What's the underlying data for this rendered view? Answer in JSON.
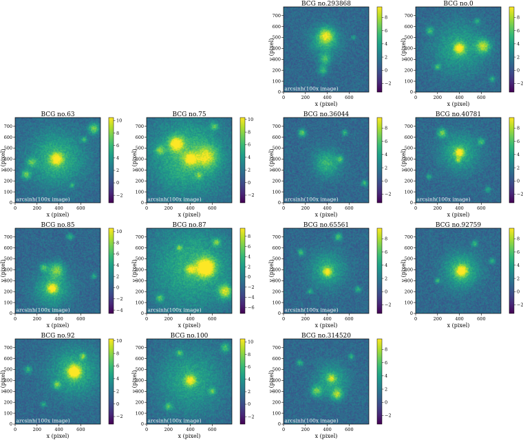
{
  "chart_data": {
    "type": "heatmap",
    "colormap": "viridis",
    "panels": [
      {
        "title": "BCG no.293868",
        "xlabel": "x (pixel)",
        "ylabel": "y (pixel)",
        "annotation": "arcsinh(100x image)",
        "x_ticks": [
          0,
          200,
          400,
          600
        ],
        "y_ticks": [
          0,
          100,
          200,
          300,
          400,
          500,
          600,
          700
        ],
        "xlim": [
          0,
          780
        ],
        "ylim": [
          0,
          780
        ],
        "colorbar_ticks": [
          -2,
          0,
          2,
          4,
          6,
          8
        ],
        "colorbar_range": [
          -3.3,
          9.6
        ],
        "sources": [
          [
            380,
            470,
            90,
            1
          ],
          [
            390,
            520,
            45,
            1.3
          ],
          [
            380,
            300,
            35,
            1
          ],
          [
            360,
            200,
            30,
            1
          ],
          [
            640,
            500,
            15,
            0.8
          ]
        ]
      },
      {
        "title": "BCG no.0",
        "xlabel": "x (pixel)",
        "ylabel": "y (pixel)",
        "annotation": "",
        "x_ticks": [
          0,
          200,
          400,
          600
        ],
        "y_ticks": [
          0,
          100,
          200,
          300,
          400,
          500,
          600,
          700
        ],
        "xlim": [
          0,
          780
        ],
        "ylim": [
          0,
          780
        ],
        "colorbar_ticks": [
          -2,
          0,
          2,
          4,
          6,
          8
        ],
        "colorbar_range": [
          -3.3,
          9.6
        ],
        "sources": [
          [
            400,
            400,
            160,
            0.8
          ],
          [
            400,
            400,
            35,
            1.6
          ],
          [
            620,
            420,
            45,
            1.5
          ],
          [
            130,
            560,
            25,
            1
          ],
          [
            200,
            230,
            20,
            1
          ],
          [
            560,
            650,
            18,
            0.9
          ],
          [
            700,
            120,
            20,
            0.9
          ]
        ]
      },
      {
        "title": "BCG no.63",
        "xlabel": "x (pixel)",
        "ylabel": "y (pixel)",
        "annotation": "arcsinh(100x image)",
        "x_ticks": [
          0,
          200,
          400,
          600
        ],
        "y_ticks": [
          0,
          100,
          200,
          300,
          400,
          500,
          600,
          700
        ],
        "xlim": [
          0,
          780
        ],
        "ylim": [
          0,
          780
        ],
        "colorbar_ticks": [
          -2,
          0,
          2,
          4,
          6,
          8,
          10
        ],
        "colorbar_range": [
          -3.2,
          10.5
        ],
        "sources": [
          [
            380,
            400,
            170,
            1
          ],
          [
            380,
            400,
            40,
            1.5
          ],
          [
            150,
            370,
            30,
            1
          ],
          [
            100,
            260,
            30,
            1.2
          ],
          [
            720,
            680,
            35,
            1.4
          ],
          [
            630,
            580,
            18,
            1
          ],
          [
            520,
            160,
            15,
            0.8
          ]
        ]
      },
      {
        "title": "BCG no.75",
        "xlabel": "x (pixel)",
        "ylabel": "y (pixel)",
        "annotation": "arcsinh(100x image)",
        "x_ticks": [
          0,
          200,
          400,
          600
        ],
        "y_ticks": [
          0,
          100,
          200,
          300,
          400,
          500,
          600,
          700
        ],
        "xlim": [
          0,
          780
        ],
        "ylim": [
          0,
          780
        ],
        "colorbar_ticks": [
          -2,
          0,
          2,
          4,
          6,
          8,
          10
        ],
        "colorbar_range": [
          -3.2,
          10.3
        ],
        "sources": [
          [
            380,
            420,
            230,
            1.1
          ],
          [
            270,
            540,
            45,
            1.8
          ],
          [
            400,
            400,
            40,
            1.4
          ],
          [
            550,
            420,
            70,
            1.2
          ],
          [
            120,
            480,
            30,
            1
          ],
          [
            620,
            700,
            25,
            1
          ],
          [
            480,
            250,
            20,
            0.8
          ]
        ]
      },
      {
        "title": "BCG no.36044",
        "xlabel": "x (pixel)",
        "ylabel": "y (pixel)",
        "annotation": "arcsinh(100x image)",
        "x_ticks": [
          0,
          200,
          400,
          600
        ],
        "y_ticks": [
          0,
          100,
          200,
          300,
          400,
          500,
          600,
          700
        ],
        "xlim": [
          0,
          780
        ],
        "ylim": [
          0,
          780
        ],
        "colorbar_ticks": [
          -2,
          0,
          2,
          4,
          6,
          8
        ],
        "colorbar_range": [
          -3.3,
          9.6
        ],
        "sources": [
          [
            400,
            360,
            85,
            1
          ],
          [
            170,
            640,
            25,
            1.3
          ],
          [
            560,
            640,
            20,
            1
          ],
          [
            520,
            400,
            22,
            1
          ],
          [
            740,
            180,
            20,
            1
          ]
        ]
      },
      {
        "title": "BCG no.40781",
        "xlabel": "x (pixel)",
        "ylabel": "y (pixel)",
        "annotation": "arcsinh(100x image)",
        "x_ticks": [
          0,
          200,
          400,
          600
        ],
        "y_ticks": [
          0,
          100,
          200,
          300,
          400,
          500,
          600,
          700
        ],
        "xlim": [
          0,
          780
        ],
        "ylim": [
          0,
          780
        ],
        "colorbar_ticks": [
          -2,
          0,
          2,
          4,
          6,
          8
        ],
        "colorbar_range": [
          -3.3,
          9.6
        ],
        "sources": [
          [
            400,
            460,
            120,
            0.9
          ],
          [
            400,
            460,
            30,
            1.6
          ],
          [
            240,
            640,
            30,
            1.3
          ],
          [
            600,
            560,
            22,
            1
          ],
          [
            120,
            240,
            18,
            0.9
          ],
          [
            660,
            120,
            18,
            0.9
          ],
          [
            390,
            390,
            16,
            1
          ]
        ]
      },
      {
        "title": "BCG no.85",
        "xlabel": "x (pixel)",
        "ylabel": "y (pixel)",
        "annotation": "arcsinh(100x image)",
        "x_ticks": [
          0,
          200,
          400,
          600
        ],
        "y_ticks": [
          0,
          100,
          200,
          300,
          400,
          500,
          600,
          700
        ],
        "xlim": [
          0,
          780
        ],
        "ylim": [
          0,
          780
        ],
        "colorbar_ticks": [
          -4,
          -2,
          0,
          2,
          4,
          6,
          8,
          10
        ],
        "colorbar_range": [
          -4.6,
          10.6
        ],
        "sources": [
          [
            340,
            230,
            110,
            1
          ],
          [
            340,
            230,
            30,
            1.6
          ],
          [
            380,
            400,
            50,
            1.2
          ],
          [
            260,
            420,
            25,
            1
          ],
          [
            500,
            700,
            20,
            1
          ],
          [
            720,
            340,
            18,
            0.9
          ]
        ]
      },
      {
        "title": "BCG no.87",
        "xlabel": "x (pixel)",
        "ylabel": "y (pixel)",
        "annotation": "arcsinh(100x image)",
        "x_ticks": [
          0,
          200,
          400,
          600
        ],
        "y_ticks": [
          0,
          100,
          200,
          300,
          400,
          500,
          600,
          700
        ],
        "xlim": [
          0,
          780
        ],
        "ylim": [
          0,
          780
        ],
        "colorbar_ticks": [
          -6,
          -4,
          -2,
          0,
          2,
          4,
          6,
          8
        ],
        "colorbar_range": [
          -7.2,
          9.6
        ],
        "sources": [
          [
            420,
            420,
            260,
            0.9
          ],
          [
            540,
            420,
            60,
            2.2
          ],
          [
            720,
            200,
            45,
            1.6
          ],
          [
            400,
            400,
            30,
            1.2
          ],
          [
            120,
            140,
            25,
            1
          ],
          [
            640,
            650,
            25,
            1.1
          ],
          [
            300,
            600,
            18,
            1
          ]
        ]
      },
      {
        "title": "BCG no.65561",
        "xlabel": "x (pixel)",
        "ylabel": "y (pixel)",
        "annotation": "arcsinh(100x image)",
        "x_ticks": [
          0,
          200,
          400,
          600
        ],
        "y_ticks": [
          0,
          100,
          200,
          300,
          400,
          500,
          600,
          700
        ],
        "xlim": [
          0,
          780
        ],
        "ylim": [
          0,
          780
        ],
        "colorbar_ticks": [
          -2,
          0,
          2,
          4,
          6,
          8
        ],
        "colorbar_range": [
          -3.3,
          9.6
        ],
        "sources": [
          [
            400,
            400,
            110,
            0.9
          ],
          [
            400,
            380,
            30,
            1.4
          ],
          [
            500,
            700,
            25,
            1.2
          ],
          [
            160,
            560,
            22,
            1.1
          ],
          [
            680,
            220,
            20,
            1
          ],
          [
            240,
            200,
            18,
            0.9
          ]
        ]
      },
      {
        "title": "BCG no.92759",
        "xlabel": "x (pixel)",
        "ylabel": "y (pixel)",
        "annotation": "",
        "x_ticks": [
          0,
          200,
          400,
          600
        ],
        "y_ticks": [
          0,
          100,
          200,
          300,
          400,
          500,
          600,
          700
        ],
        "xlim": [
          0,
          780
        ],
        "ylim": [
          0,
          780
        ],
        "colorbar_ticks": [
          -2,
          0,
          2,
          4,
          6,
          8
        ],
        "colorbar_range": [
          -3.3,
          9.6
        ],
        "sources": [
          [
            420,
            390,
            110,
            1.1
          ],
          [
            420,
            390,
            35,
            1.6
          ],
          [
            540,
            640,
            20,
            1
          ],
          [
            700,
            480,
            18,
            1
          ],
          [
            200,
            300,
            18,
            0.9
          ]
        ]
      },
      {
        "title": "BCG no.92",
        "xlabel": "x (pixel)",
        "ylabel": "y (pixel)",
        "annotation": "arcsinh(100x image)",
        "x_ticks": [
          0,
          200,
          400,
          600
        ],
        "y_ticks": [
          0,
          100,
          200,
          300,
          400,
          500,
          600,
          700
        ],
        "xlim": [
          0,
          780
        ],
        "ylim": [
          0,
          780
        ],
        "colorbar_ticks": [
          -2,
          0,
          2,
          4,
          6,
          8,
          10
        ],
        "colorbar_range": [
          -3.2,
          10.3
        ],
        "sources": [
          [
            540,
            480,
            150,
            1
          ],
          [
            540,
            480,
            40,
            2
          ],
          [
            120,
            500,
            25,
            1
          ],
          [
            380,
            360,
            25,
            1.1
          ],
          [
            620,
            620,
            20,
            1
          ],
          [
            260,
            180,
            18,
            0.9
          ]
        ]
      },
      {
        "title": "BCG no.100",
        "xlabel": "x (pixel)",
        "ylabel": "y (pixel)",
        "annotation": "arcsinh(100x image)",
        "x_ticks": [
          0,
          200,
          400,
          600
        ],
        "y_ticks": [
          0,
          100,
          200,
          300,
          400,
          500,
          600,
          700
        ],
        "xlim": [
          0,
          780
        ],
        "ylim": [
          0,
          780
        ],
        "colorbar_ticks": [
          -2,
          0,
          2,
          4,
          6,
          8,
          10
        ],
        "colorbar_range": [
          -3.2,
          10.5
        ],
        "sources": [
          [
            400,
            400,
            200,
            0.8
          ],
          [
            400,
            400,
            35,
            1.5
          ],
          [
            720,
            700,
            30,
            1.1
          ],
          [
            200,
            160,
            25,
            1
          ],
          [
            600,
            300,
            22,
            1
          ],
          [
            300,
            650,
            20,
            1
          ]
        ]
      },
      {
        "title": "BCG no.314520",
        "xlabel": "x (pixel)",
        "ylabel": "y (pixel)",
        "annotation": "arcsinh(100x image)",
        "x_ticks": [
          0,
          200,
          400,
          600
        ],
        "y_ticks": [
          0,
          100,
          200,
          300,
          400,
          500,
          600,
          700
        ],
        "xlim": [
          0,
          780
        ],
        "ylim": [
          0,
          780
        ],
        "colorbar_ticks": [
          -2,
          0,
          2,
          4,
          6,
          8
        ],
        "colorbar_range": [
          -3.3,
          9.6
        ],
        "sources": [
          [
            440,
            400,
            100,
            0.9
          ],
          [
            490,
            270,
            35,
            1.4
          ],
          [
            300,
            300,
            35,
            1.2
          ],
          [
            440,
            420,
            25,
            1.1
          ],
          [
            150,
            560,
            20,
            1
          ],
          [
            620,
            620,
            18,
            1
          ]
        ]
      }
    ]
  }
}
